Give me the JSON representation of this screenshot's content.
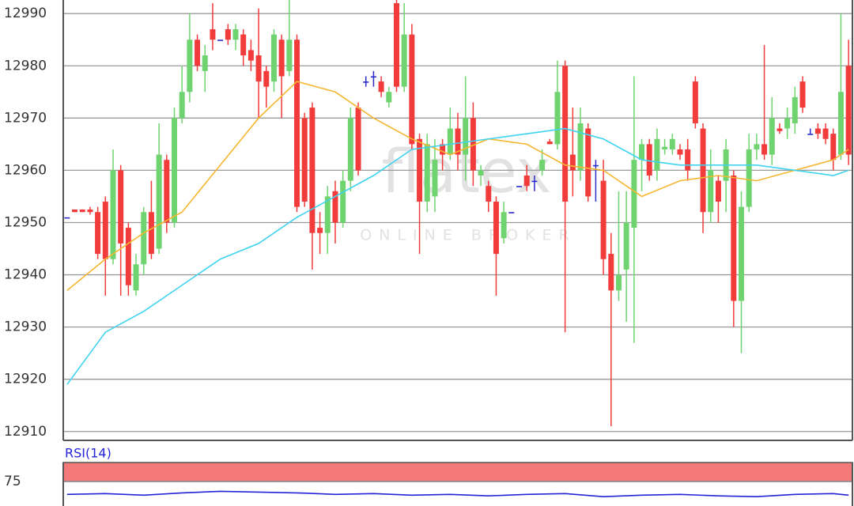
{
  "chart_data": [
    {
      "type": "candlestick",
      "xlim": [
        -0.5,
        102.5
      ],
      "ylim": [
        12908.3,
        12992.6
      ],
      "yticks": [
        12910,
        12920,
        12930,
        12940,
        12950,
        12960,
        12970,
        12980,
        12990
      ],
      "grid": true,
      "up_color": "#6fd46f",
      "down_color": "#f23b3b",
      "doji_color": "#2b2bc8",
      "open": [
        12951,
        12952.5,
        12952.5,
        12952.5,
        12952,
        12954,
        12943,
        12960,
        12949,
        12937,
        12942,
        12952,
        12945,
        12962,
        12950,
        12970,
        12975,
        12985,
        12979,
        12987,
        12985,
        12987,
        12985,
        12986,
        12983,
        12982,
        12979,
        12977,
        12985,
        12979,
        12985,
        12970,
        12972,
        12949,
        12948,
        12956,
        12950,
        12958,
        12972,
        12977,
        12978,
        12977,
        12973,
        12992,
        12976,
        12986,
        12966,
        12954,
        12955,
        12965,
        12963,
        12968,
        12963,
        12970,
        12959,
        12957,
        12954,
        12947,
        12952,
        12957,
        12959,
        12958,
        12960,
        12965.5,
        12965,
        12980,
        12963,
        12960,
        12968,
        12961,
        12958,
        12944,
        12937,
        12941,
        12949,
        12962,
        12965,
        12960,
        12964,
        12964,
        12964,
        12964,
        12977,
        12968,
        12952,
        12958,
        12958,
        12959,
        12935,
        12953,
        12964,
        12965,
        12963,
        12968,
        12968,
        12969,
        12977,
        12967,
        12968,
        12968,
        12967,
        12963,
        12980
      ],
      "high": [
        12951,
        12952.5,
        12952.5,
        12953,
        12953,
        12955,
        12964,
        12961,
        12950,
        12944,
        12953,
        12958,
        12969,
        12963,
        12972,
        12980,
        12990,
        12986,
        12984,
        12992,
        12985,
        12988,
        12988,
        12987,
        12985,
        12991,
        12980,
        12987,
        12986,
        12993,
        12986,
        12971,
        12973,
        12952,
        12957,
        12958,
        12960,
        12972,
        12973,
        12978,
        12979,
        12978,
        12976,
        12993,
        12992,
        12988,
        12967,
        12967,
        12966,
        12966,
        12972,
        12971,
        12978,
        12973,
        12961,
        12958,
        12955,
        12954,
        12952,
        12957,
        12961,
        12959,
        12964,
        12966,
        12981,
        12981,
        12972,
        12972,
        12969,
        12962,
        12962,
        12948,
        12956,
        12956,
        12978,
        12966,
        12966,
        12968,
        12966,
        12967,
        12965,
        12966,
        12978,
        12969,
        12964,
        12959,
        12966,
        12960,
        12956,
        12967,
        12967,
        12984,
        12974,
        12969,
        12972,
        12976,
        12978,
        12968,
        12969,
        12969,
        12968,
        12990,
        12985
      ],
      "low": [
        12951,
        12952,
        12952,
        12951.5,
        12943,
        12936,
        12942,
        12936,
        12936,
        12936,
        12940,
        12943,
        12944,
        12948,
        12949,
        12969,
        12973,
        12979,
        12975,
        12983,
        12985,
        12984,
        12983,
        12980,
        12979,
        12970,
        12972,
        12975,
        12970,
        12978,
        12952,
        12953,
        12941,
        12944,
        12944,
        12946,
        12949,
        12956,
        12959,
        12976,
        12976,
        12974,
        12972,
        12975,
        12975,
        12964,
        12944,
        12952,
        12952,
        12960,
        12962,
        12960,
        12958,
        12957,
        12957,
        12952,
        12936,
        12946,
        12952,
        12957,
        12956,
        12956,
        12959,
        12965,
        12964,
        12929,
        12955,
        12958,
        12954,
        12954,
        12940,
        12911,
        12935,
        12931,
        12927,
        12956,
        12958,
        12958,
        12963,
        12963,
        12962,
        12958,
        12968,
        12948,
        12950,
        12950,
        12952,
        12930,
        12925,
        12952,
        12962,
        12962,
        12961,
        12967,
        12966,
        12967,
        12971,
        12967,
        12966,
        12965,
        12960,
        12962,
        12961
      ],
      "close": [
        12951,
        12952,
        12952,
        12952,
        12944,
        12943,
        12960,
        12946,
        12938,
        12942,
        12952,
        12944,
        12963,
        12950,
        12970,
        12975,
        12985,
        12980,
        12982,
        12985,
        12985,
        12985,
        12987,
        12982,
        12981,
        12977,
        12976,
        12986,
        12978,
        12985,
        12953,
        12954,
        12948,
        12948,
        12955,
        12950,
        12958,
        12970,
        12960,
        12977,
        12978,
        12975,
        12975,
        12976,
        12986,
        12965,
        12954,
        12965,
        12962,
        12963,
        12968,
        12963,
        12970,
        12960,
        12960,
        12954,
        12944,
        12952,
        12952,
        12957,
        12957,
        12958,
        12962,
        12965,
        12975,
        12954,
        12960,
        12969,
        12955,
        12961,
        12943,
        12937,
        12940,
        12950,
        12962,
        12965,
        12959,
        12966,
        12964.5,
        12966,
        12963,
        12960,
        12969,
        12952,
        12960,
        12954,
        12964,
        12935,
        12953,
        12964,
        12965,
        12963,
        12970,
        12967.5,
        12970,
        12974,
        12972,
        12967,
        12967,
        12966,
        12962,
        12975,
        12963
      ],
      "series": [
        {
          "color": "#f5b630",
          "x": [
            0,
            5,
            10,
            15,
            20,
            25,
            30,
            35,
            40,
            45,
            50,
            55,
            60,
            65,
            70,
            75,
            80,
            85,
            90,
            95,
            100,
            102
          ],
          "values": [
            12937,
            12943,
            12948,
            12952,
            12961,
            12970,
            12977,
            12975,
            12970,
            12966,
            12963,
            12966,
            12965,
            12961,
            12960,
            12955,
            12958,
            12959,
            12958,
            12960,
            12962,
            12964
          ]
        },
        {
          "color": "#3fd3f0",
          "x": [
            0,
            5,
            10,
            15,
            20,
            25,
            30,
            35,
            40,
            45,
            50,
            55,
            60,
            65,
            70,
            75,
            80,
            85,
            90,
            95,
            100,
            102
          ],
          "values": [
            12919,
            12929,
            12933,
            12938,
            12943,
            12946,
            12951,
            12955,
            12959,
            12964,
            12965,
            12966,
            12967,
            12968,
            12966,
            12962,
            12961,
            12961,
            12961,
            12960,
            12959,
            12960
          ]
        }
      ]
    },
    {
      "type": "line",
      "title": "RSI(14)",
      "xlim": [
        -0.5,
        102.5
      ],
      "ylim": [
        42.7,
        100
      ],
      "yticks": [
        75
      ],
      "band": [
        75,
        100
      ],
      "band_color": "#f47a7a",
      "series": [
        {
          "color": "#2323d8",
          "x": [
            0,
            5,
            10,
            15,
            20,
            25,
            30,
            35,
            40,
            45,
            50,
            55,
            60,
            65,
            70,
            75,
            80,
            85,
            90,
            95,
            100,
            102
          ],
          "values": [
            58,
            59,
            57,
            60,
            62,
            61,
            60,
            58,
            59,
            57,
            58,
            56,
            58,
            59,
            55,
            57,
            58,
            56,
            55,
            58,
            59,
            57
          ]
        }
      ]
    }
  ],
  "watermark": {
    "logo": "flatex",
    "tagline": "ONLINE BROKER"
  }
}
